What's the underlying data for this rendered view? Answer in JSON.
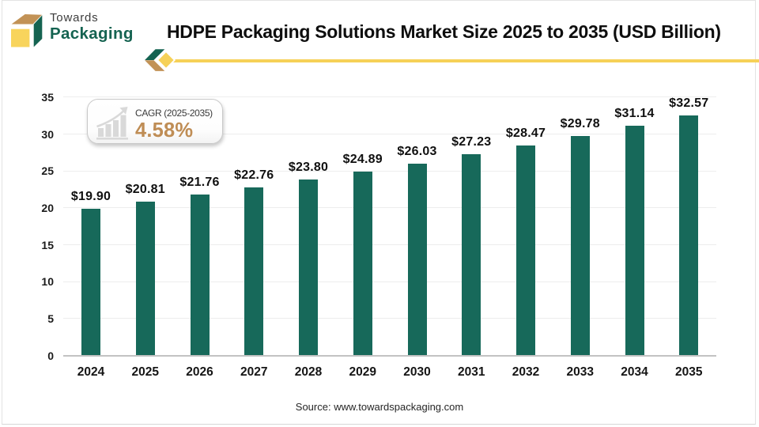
{
  "brand": {
    "line1": "Towards",
    "line2": "Packaging"
  },
  "header": {
    "title": "HDPE Packaging Solutions Market Size 2025 to 2035 (USD Billion)"
  },
  "badge": {
    "label": "CAGR (2025-2035)",
    "value": "4.58%"
  },
  "footer": {
    "source": "Source: www.towardspackaging.com"
  },
  "colors": {
    "bar": "#17695a",
    "logo_teal": "#156351",
    "logo_tan": "#c29256",
    "logo_yellow": "#f8d45c",
    "divider_yellow": "#f6d158",
    "cagr_value": "#bf8d55",
    "axis_line": "#c2c2c2",
    "gridline": "#ededed"
  },
  "chart_data": {
    "type": "bar",
    "title": "HDPE Packaging Solutions Market Size 2025 to 2035 (USD Billion)",
    "categories": [
      "2024",
      "2025",
      "2026",
      "2027",
      "2028",
      "2029",
      "2030",
      "2031",
      "2032",
      "2033",
      "2034",
      "2035"
    ],
    "values": [
      19.9,
      20.81,
      21.76,
      22.76,
      23.8,
      24.89,
      26.03,
      27.23,
      28.47,
      29.78,
      31.14,
      32.57
    ],
    "value_labels": [
      "$19.90",
      "$20.81",
      "$21.76",
      "$22.76",
      "$23.80",
      "$24.89",
      "$26.03",
      "$27.23",
      "$28.47",
      "$29.78",
      "$31.14",
      "$32.57"
    ],
    "value_prefix": "$",
    "xlabel": "",
    "ylabel": "",
    "ylim": [
      0,
      35
    ],
    "yticks": [
      0,
      5,
      10,
      15,
      20,
      25,
      30,
      35
    ],
    "grid": true,
    "legend": false,
    "annotation": "CAGR (2025-2035) 4.58%"
  }
}
